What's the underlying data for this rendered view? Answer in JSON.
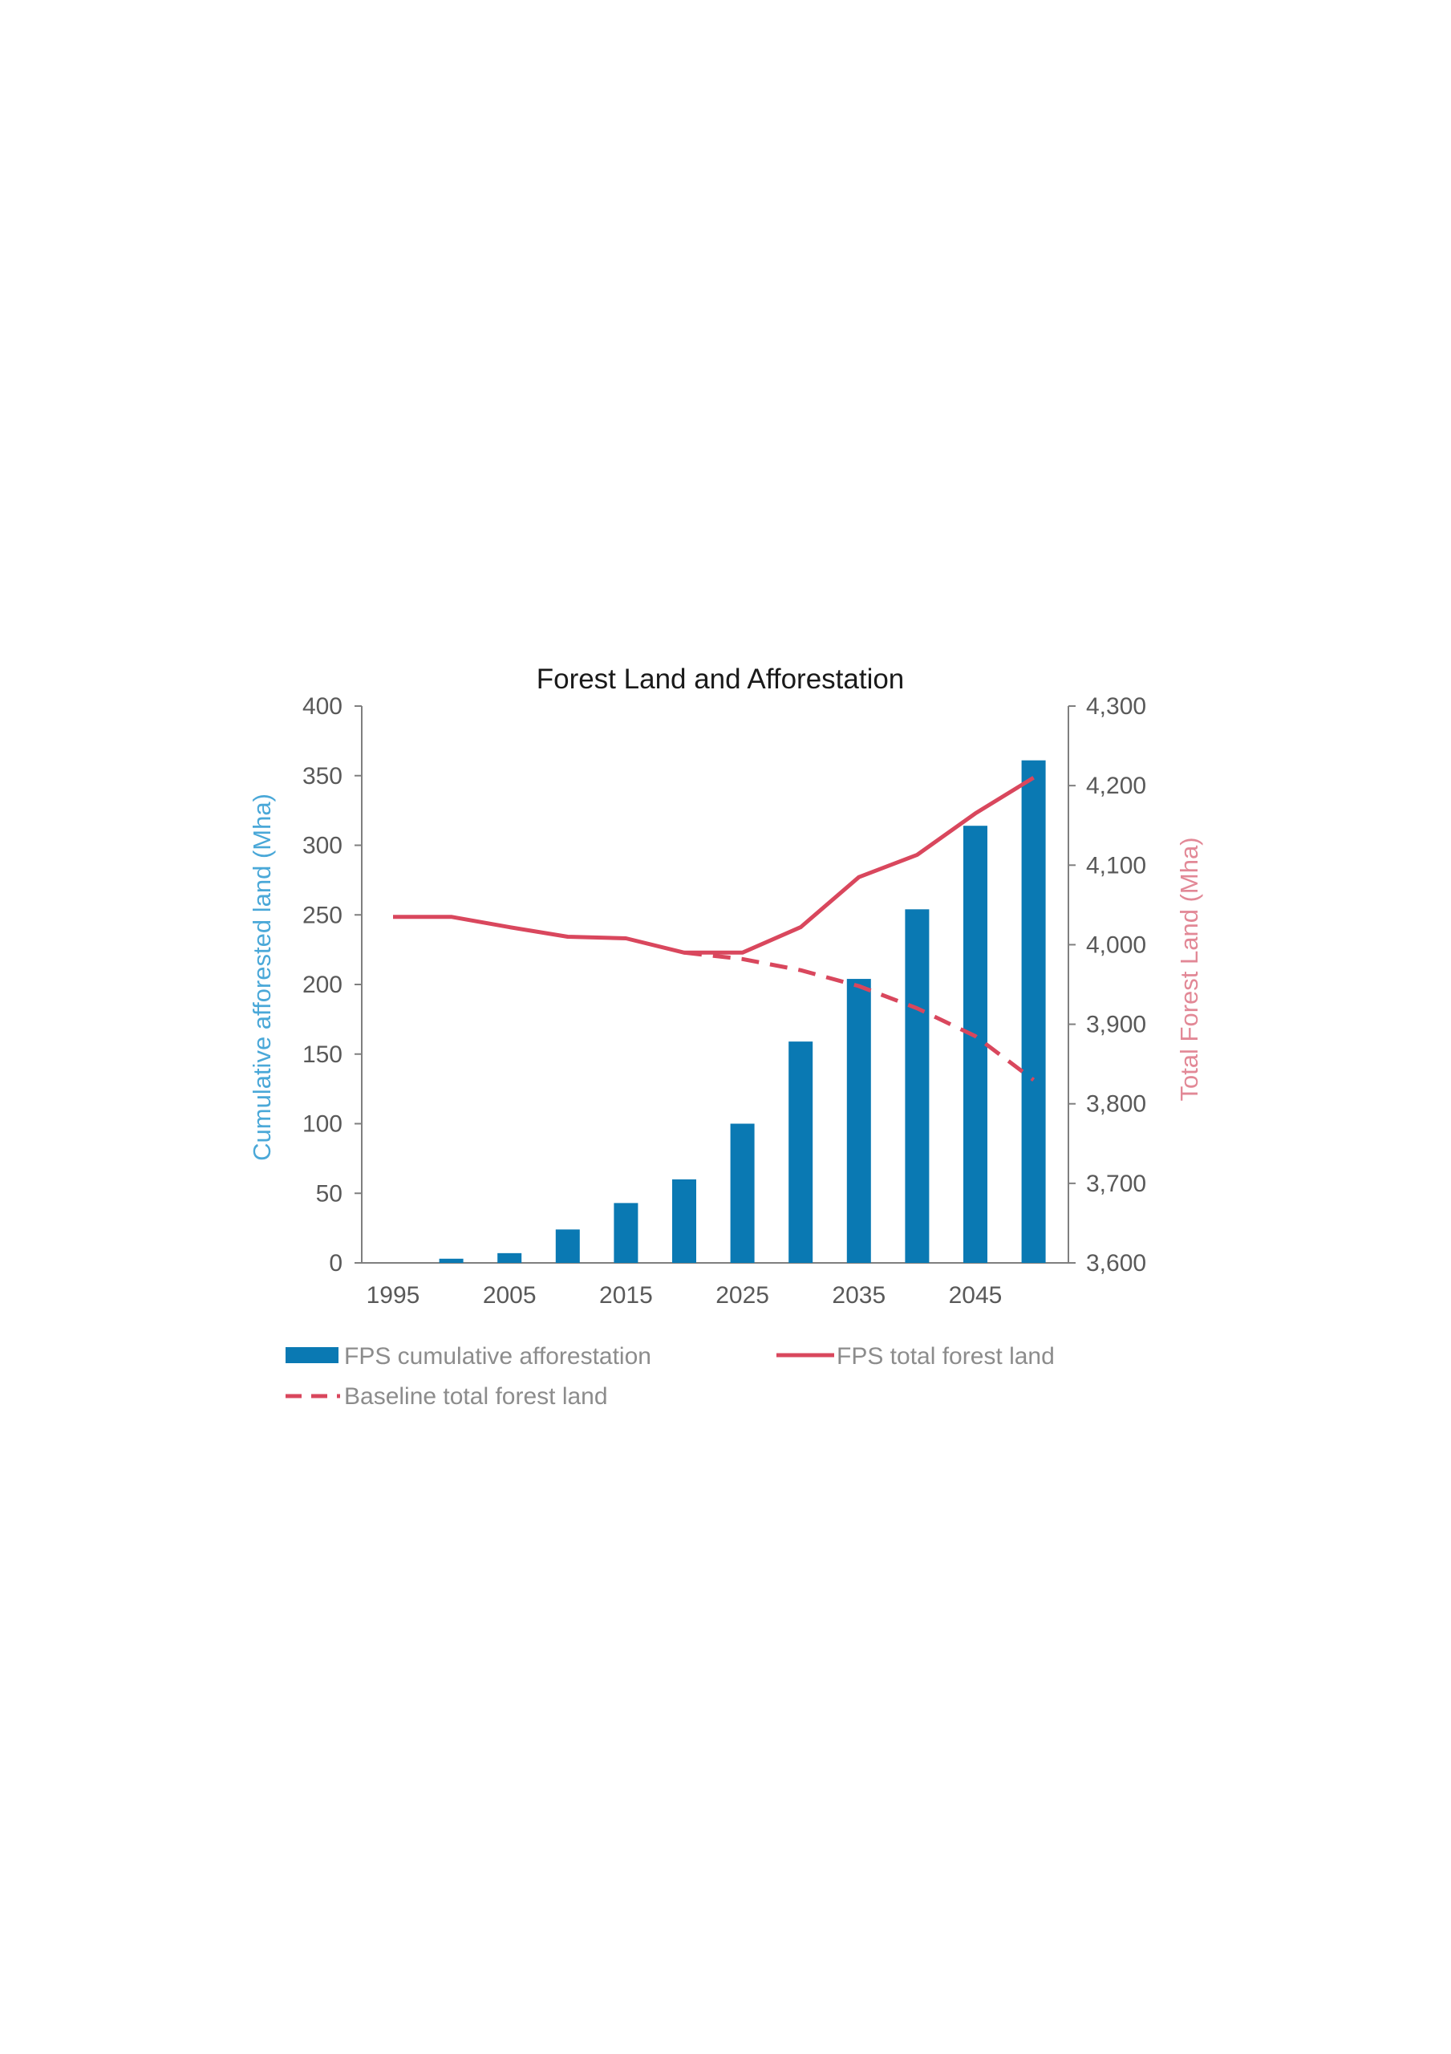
{
  "chart_data": {
    "type": "bar",
    "title": "Forest Land and Afforestation",
    "x": [
      1995,
      2000,
      2005,
      2010,
      2015,
      2020,
      2025,
      2030,
      2035,
      2040,
      2045,
      2050
    ],
    "x_tick_labels": [
      "1995",
      "2005",
      "2015",
      "2025",
      "2035",
      "2045"
    ],
    "xlabel": "",
    "ylabel_left": "Cumulative afforested land (Mha)",
    "ylabel_right": "Total Forest Land (Mha)",
    "ylim_left": [
      0,
      400
    ],
    "ylim_right": [
      3600,
      4300
    ],
    "yticks_left": [
      "0",
      "50",
      "100",
      "150",
      "200",
      "250",
      "300",
      "350",
      "400"
    ],
    "yticks_right": [
      "3,600",
      "3,700",
      "3,800",
      "3,900",
      "4,000",
      "4,100",
      "4,200",
      "4,300"
    ],
    "grid": false,
    "legend_position": "bottom",
    "series": [
      {
        "name": "FPS cumulative afforestation",
        "type": "bar",
        "axis": "left",
        "color": "#0a79b3",
        "values": [
          0,
          3,
          7,
          24,
          43,
          60,
          100,
          159,
          204,
          254,
          314,
          361
        ]
      },
      {
        "name": "FPS total forest land",
        "type": "line",
        "axis": "right",
        "color": "#d9475d",
        "style": "solid",
        "values": [
          4035,
          4035,
          4022,
          4010,
          4008,
          3990,
          3990,
          4022,
          4085,
          4113,
          4165,
          4210
        ]
      },
      {
        "name": "Baseline total forest land",
        "type": "line",
        "axis": "right",
        "color": "#d9475d",
        "style": "dashed",
        "values": [
          4035,
          4035,
          4022,
          4010,
          4008,
          3990,
          3982,
          3968,
          3948,
          3920,
          3885,
          3830
        ]
      }
    ],
    "colors": {
      "left_axis_title": "#4aa8d8",
      "right_axis_title": "#e28896",
      "bar": "#0a79b3",
      "line": "#d9475d"
    }
  }
}
